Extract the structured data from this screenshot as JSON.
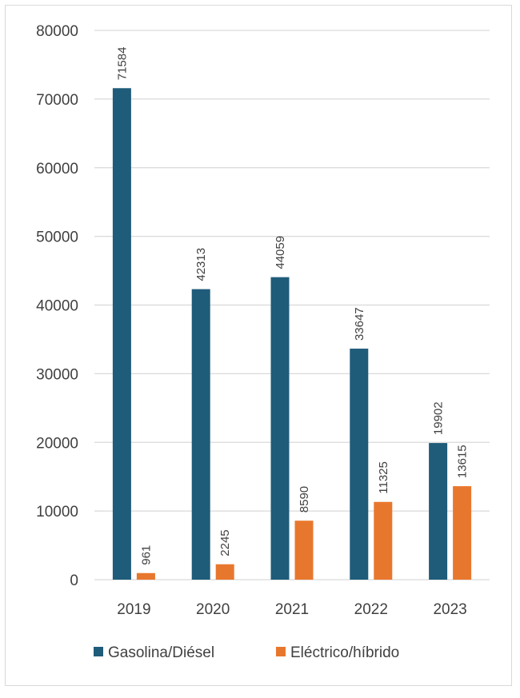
{
  "chart_data": {
    "type": "bar",
    "categories": [
      "2019",
      "2020",
      "2021",
      "2022",
      "2023"
    ],
    "series": [
      {
        "name": "Gasolina/Diésel",
        "values": [
          71584,
          42313,
          44059,
          33647,
          19902
        ],
        "color": "#1f5c7a"
      },
      {
        "name": "Eléctrico/híbrido",
        "values": [
          961,
          2245,
          8590,
          11325,
          13615
        ],
        "color": "#e8772e"
      }
    ],
    "ylim": [
      0,
      80000
    ],
    "yticks": [
      "0",
      "10000",
      "20000",
      "30000",
      "40000",
      "50000",
      "60000",
      "70000",
      "80000"
    ],
    "grid": true,
    "legend": "bottom",
    "data_labels": true
  }
}
